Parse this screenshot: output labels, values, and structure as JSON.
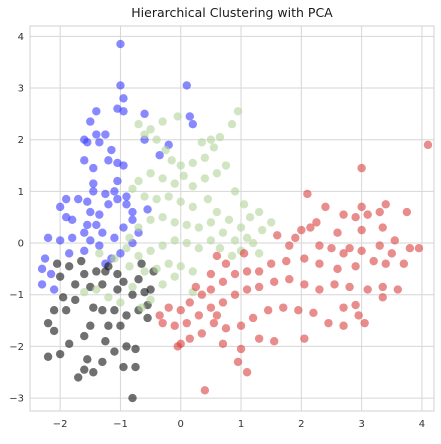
{
  "chart_data": {
    "type": "scatter",
    "title": "Hierarchical Clustering with PCA",
    "xlabel": "",
    "ylabel": "",
    "xlim": [
      -2.5,
      4.2
    ],
    "ylim": [
      -3.25,
      4.2
    ],
    "xticks": [
      -2,
      -1,
      0,
      1,
      2,
      3,
      4
    ],
    "yticks": [
      -3,
      -2,
      -1,
      0,
      1,
      2,
      3,
      4
    ],
    "grid": true,
    "legend": "none",
    "series": [
      {
        "color": "#3b3bff",
        "points": [
          [
            -1.0,
            3.85
          ],
          [
            -1.0,
            3.05
          ],
          [
            -0.95,
            2.8
          ],
          [
            -0.95,
            2.55
          ],
          [
            -1.05,
            2.6
          ],
          [
            -1.4,
            2.55
          ],
          [
            -1.5,
            2.35
          ],
          [
            -1.6,
            2.0
          ],
          [
            -1.4,
            2.1
          ],
          [
            -1.25,
            2.1
          ],
          [
            -1.55,
            1.95
          ],
          [
            -1.35,
            1.95
          ],
          [
            -1.15,
            1.8
          ],
          [
            -1.2,
            1.6
          ],
          [
            -1.45,
            1.45
          ],
          [
            -1.6,
            1.6
          ],
          [
            -1.05,
            1.55
          ],
          [
            -0.95,
            1.5
          ],
          [
            -1.05,
            1.2
          ],
          [
            -1.1,
            1.0
          ],
          [
            -1.25,
            0.95
          ],
          [
            -1.45,
            1.0
          ],
          [
            -1.7,
            0.85
          ],
          [
            -1.9,
            0.85
          ],
          [
            -2.0,
            0.7
          ],
          [
            -1.9,
            0.5
          ],
          [
            -1.8,
            0.45
          ],
          [
            -1.55,
            0.8
          ],
          [
            -1.5,
            0.6
          ],
          [
            -1.35,
            0.55
          ],
          [
            -1.2,
            0.75
          ],
          [
            -1.05,
            0.85
          ],
          [
            -0.9,
            0.75
          ],
          [
            -1.55,
            0.35
          ],
          [
            -1.4,
            0.35
          ],
          [
            -1.3,
            0.2
          ],
          [
            -1.6,
            0.2
          ],
          [
            -1.8,
            0.1
          ],
          [
            -2.0,
            0.05
          ],
          [
            -2.2,
            0.1
          ],
          [
            -2.25,
            -0.3
          ],
          [
            -2.3,
            -0.8
          ],
          [
            -2.15,
            -0.6
          ],
          [
            -2.3,
            -0.5
          ],
          [
            -1.85,
            -0.2
          ],
          [
            -1.6,
            -0.15
          ],
          [
            -1.35,
            -0.05
          ],
          [
            -1.1,
            0.1
          ],
          [
            -0.95,
            0.3
          ],
          [
            -0.8,
            0.45
          ],
          [
            -0.8,
            0.6
          ],
          [
            -0.9,
            0.9
          ],
          [
            -0.6,
            2.0
          ],
          [
            -0.7,
            0.2
          ],
          [
            -0.55,
            0.65
          ],
          [
            -1.15,
            -0.3
          ],
          [
            -1.25,
            -0.4
          ],
          [
            -2.1,
            -0.9
          ],
          [
            -1.5,
            0.05
          ],
          [
            -1.0,
            -0.2
          ],
          [
            -0.6,
            2.5
          ],
          [
            -0.8,
            0.0
          ],
          [
            0.1,
            3.05
          ],
          [
            0.15,
            2.45
          ],
          [
            0.2,
            2.3
          ],
          [
            -0.35,
            1.7
          ],
          [
            -0.2,
            1.9
          ],
          [
            -1.45,
            1.15
          ]
        ]
      },
      {
        "color": "#111111",
        "points": [
          [
            -0.8,
            -3.0
          ],
          [
            -2.2,
            -2.2
          ],
          [
            -2.0,
            -2.15
          ],
          [
            -1.85,
            -1.95
          ],
          [
            -2.1,
            -1.7
          ],
          [
            -1.6,
            -1.8
          ],
          [
            -1.5,
            -1.6
          ],
          [
            -1.55,
            -2.25
          ],
          [
            -1.6,
            -2.45
          ],
          [
            -1.7,
            -2.6
          ],
          [
            -1.45,
            -2.5
          ],
          [
            -1.3,
            -2.3
          ],
          [
            -1.1,
            -2.1
          ],
          [
            -0.9,
            -2.0
          ],
          [
            -0.75,
            -2.05
          ],
          [
            -0.95,
            -2.4
          ],
          [
            -0.75,
            -2.4
          ],
          [
            -1.2,
            -1.6
          ],
          [
            -1.3,
            -1.3
          ],
          [
            -1.1,
            -1.3
          ],
          [
            -0.9,
            -1.4
          ],
          [
            -0.7,
            -1.3
          ],
          [
            -0.55,
            -1.2
          ],
          [
            -0.6,
            -0.95
          ],
          [
            -0.8,
            -1.0
          ],
          [
            -1.05,
            -0.9
          ],
          [
            -1.3,
            -0.8
          ],
          [
            -1.5,
            -0.85
          ],
          [
            -1.75,
            -0.8
          ],
          [
            -2.0,
            -0.65
          ],
          [
            -1.95,
            -1.05
          ],
          [
            -2.1,
            -1.3
          ],
          [
            -1.9,
            -1.3
          ],
          [
            -1.6,
            -0.6
          ],
          [
            -1.4,
            -0.55
          ],
          [
            -1.25,
            -0.55
          ],
          [
            -1.05,
            -0.6
          ],
          [
            -0.95,
            -0.75
          ],
          [
            -0.7,
            -0.7
          ],
          [
            -0.5,
            -0.9
          ],
          [
            -0.45,
            -0.55
          ],
          [
            -2.05,
            -0.4
          ],
          [
            -1.85,
            -0.45
          ],
          [
            -1.65,
            -0.35
          ],
          [
            -1.2,
            -0.45
          ],
          [
            -0.55,
            -1.45
          ],
          [
            -1.75,
            -1.1
          ],
          [
            -2.2,
            -1.55
          ],
          [
            -1.45,
            -1.25
          ],
          [
            -1.0,
            -1.6
          ],
          [
            -1.25,
            -1.9
          ],
          [
            -0.65,
            -0.4
          ]
        ]
      },
      {
        "color": "#b4d49b",
        "points": [
          [
            -0.7,
            2.3
          ],
          [
            -0.6,
            2.1
          ],
          [
            -0.5,
            2.2
          ],
          [
            -0.3,
            2.35
          ],
          [
            -0.4,
            2.0
          ],
          [
            -0.25,
            1.8
          ],
          [
            -0.15,
            1.6
          ],
          [
            0.0,
            1.5
          ],
          [
            0.2,
            1.55
          ],
          [
            0.4,
            1.65
          ],
          [
            0.55,
            1.85
          ],
          [
            0.65,
            2.05
          ],
          [
            0.85,
            2.3
          ],
          [
            0.95,
            2.55
          ],
          [
            0.75,
            1.5
          ],
          [
            0.6,
            1.35
          ],
          [
            0.4,
            1.25
          ],
          [
            0.2,
            1.1
          ],
          [
            0.05,
            1.3
          ],
          [
            -0.1,
            1.15
          ],
          [
            -0.3,
            1.25
          ],
          [
            -0.5,
            1.35
          ],
          [
            -0.7,
            1.2
          ],
          [
            -0.8,
            1.05
          ],
          [
            -0.6,
            0.9
          ],
          [
            -0.4,
            0.85
          ],
          [
            -0.2,
            0.9
          ],
          [
            0.0,
            0.8
          ],
          [
            0.2,
            0.7
          ],
          [
            0.45,
            0.85
          ],
          [
            0.6,
            0.6
          ],
          [
            0.8,
            0.45
          ],
          [
            1.0,
            0.3
          ],
          [
            1.1,
            0.1
          ],
          [
            0.9,
            0.05
          ],
          [
            0.7,
            0.2
          ],
          [
            0.5,
            0.4
          ],
          [
            0.3,
            0.3
          ],
          [
            0.1,
            0.35
          ],
          [
            -0.1,
            0.4
          ],
          [
            -0.3,
            0.5
          ],
          [
            -0.5,
            0.45
          ],
          [
            -0.7,
            0.3
          ],
          [
            -0.85,
            0.1
          ],
          [
            -0.9,
            -0.1
          ],
          [
            -0.7,
            -0.25
          ],
          [
            -0.5,
            -0.15
          ],
          [
            -0.3,
            -0.05
          ],
          [
            -0.1,
            0.05
          ],
          [
            0.1,
            0.0
          ],
          [
            0.3,
            -0.1
          ],
          [
            0.5,
            0.05
          ],
          [
            0.65,
            -0.1
          ],
          [
            0.85,
            -0.25
          ],
          [
            1.0,
            -0.15
          ],
          [
            1.2,
            0.0
          ],
          [
            1.35,
            0.25
          ],
          [
            1.5,
            0.4
          ],
          [
            1.15,
            0.5
          ],
          [
            1.3,
            -0.2
          ],
          [
            -1.4,
            -0.9
          ],
          [
            -1.2,
            -1.05
          ],
          [
            -1.0,
            -1.15
          ],
          [
            -0.8,
            -0.85
          ],
          [
            -0.6,
            -0.55
          ],
          [
            -0.4,
            -0.5
          ],
          [
            -0.2,
            -0.4
          ],
          [
            0.0,
            -0.45
          ],
          [
            0.2,
            -0.55
          ],
          [
            -0.1,
            -0.65
          ],
          [
            -0.3,
            -0.8
          ],
          [
            -0.5,
            -1.1
          ],
          [
            -0.65,
            -1.25
          ],
          [
            -1.6,
            -0.95
          ],
          [
            -1.35,
            -0.2
          ],
          [
            -1.1,
            -0.3
          ],
          [
            -0.85,
            -0.45
          ],
          [
            0.9,
            1.0
          ],
          [
            1.05,
            0.75
          ],
          [
            0.35,
            1.95
          ],
          [
            -0.05,
            2.45
          ],
          [
            0.5,
            2.0
          ],
          [
            1.3,
            0.6
          ],
          [
            0.2,
            -0.95
          ]
        ]
      },
      {
        "color": "#d94040",
        "points": [
          [
            4.1,
            1.9
          ],
          [
            3.0,
            1.45
          ],
          [
            3.4,
            0.75
          ],
          [
            3.3,
            0.6
          ],
          [
            3.1,
            0.55
          ],
          [
            2.9,
            0.5
          ],
          [
            3.0,
            0.25
          ],
          [
            2.7,
            0.55
          ],
          [
            2.6,
            0.2
          ],
          [
            2.4,
            0.7
          ],
          [
            2.1,
            0.95
          ],
          [
            2.15,
            0.3
          ],
          [
            2.0,
            0.25
          ],
          [
            1.9,
            0.1
          ],
          [
            1.8,
            -0.05
          ],
          [
            2.3,
            -0.05
          ],
          [
            2.5,
            -0.1
          ],
          [
            2.7,
            -0.2
          ],
          [
            3.0,
            -0.15
          ],
          [
            3.3,
            -0.05
          ],
          [
            3.5,
            -0.2
          ],
          [
            3.8,
            -0.1
          ],
          [
            3.95,
            -0.1
          ],
          [
            3.7,
            -0.4
          ],
          [
            3.4,
            -0.4
          ],
          [
            3.2,
            -0.35
          ],
          [
            2.9,
            -0.45
          ],
          [
            2.6,
            -0.5
          ],
          [
            2.3,
            -0.4
          ],
          [
            2.05,
            -0.3
          ],
          [
            1.75,
            -0.35
          ],
          [
            1.5,
            -0.4
          ],
          [
            1.3,
            -0.55
          ],
          [
            1.1,
            -0.55
          ],
          [
            0.9,
            -0.6
          ],
          [
            0.7,
            -0.75
          ],
          [
            0.5,
            -0.9
          ],
          [
            0.35,
            -1.0
          ],
          [
            0.15,
            -1.15
          ],
          [
            0.0,
            -1.3
          ],
          [
            -0.2,
            -1.25
          ],
          [
            -0.35,
            -1.4
          ],
          [
            -0.3,
            -1.55
          ],
          [
            -0.1,
            -1.6
          ],
          [
            0.1,
            -1.55
          ],
          [
            0.3,
            -1.4
          ],
          [
            0.5,
            -1.25
          ],
          [
            0.7,
            -1.15
          ],
          [
            0.9,
            -1.0
          ],
          [
            1.1,
            -0.9
          ],
          [
            1.3,
            -0.85
          ],
          [
            1.55,
            -0.75
          ],
          [
            1.8,
            -0.7
          ],
          [
            2.05,
            -0.8
          ],
          [
            2.3,
            -0.9
          ],
          [
            2.55,
            -0.8
          ],
          [
            2.8,
            -0.85
          ],
          [
            3.1,
            -0.9
          ],
          [
            3.35,
            -0.85
          ],
          [
            3.6,
            -0.9
          ],
          [
            3.35,
            -1.05
          ],
          [
            2.9,
            -1.2
          ],
          [
            2.7,
            -1.25
          ],
          [
            2.95,
            -1.4
          ],
          [
            3.05,
            -1.55
          ],
          [
            2.7,
            -1.6
          ],
          [
            2.45,
            -1.55
          ],
          [
            2.2,
            -1.35
          ],
          [
            1.95,
            -1.3
          ],
          [
            1.7,
            -1.25
          ],
          [
            1.45,
            -1.3
          ],
          [
            1.2,
            -1.45
          ],
          [
            1.0,
            -1.6
          ],
          [
            0.75,
            -1.65
          ],
          [
            0.55,
            -1.55
          ],
          [
            0.35,
            -1.75
          ],
          [
            0.15,
            -1.85
          ],
          [
            -0.05,
            -2.0
          ],
          [
            0.0,
            -1.95
          ],
          [
            0.7,
            -1.95
          ],
          [
            1.0,
            -2.05
          ],
          [
            1.3,
            -1.85
          ],
          [
            1.55,
            -1.9
          ],
          [
            2.05,
            -1.85
          ],
          [
            0.95,
            -2.3
          ],
          [
            1.1,
            -2.5
          ],
          [
            0.4,
            -2.85
          ],
          [
            0.6,
            -0.25
          ],
          [
            0.75,
            -0.4
          ],
          [
            0.5,
            -0.6
          ],
          [
            1.05,
            -0.2
          ],
          [
            2.25,
            0.4
          ],
          [
            3.0,
            0.7
          ],
          [
            3.75,
            0.6
          ],
          [
            3.55,
            0.05
          ],
          [
            2.8,
            -0.1
          ],
          [
            1.6,
            0.15
          ],
          [
            0.25,
            -0.85
          ],
          [
            0.6,
            -1.4
          ],
          [
            3.35,
            0.3
          ]
        ]
      }
    ]
  }
}
